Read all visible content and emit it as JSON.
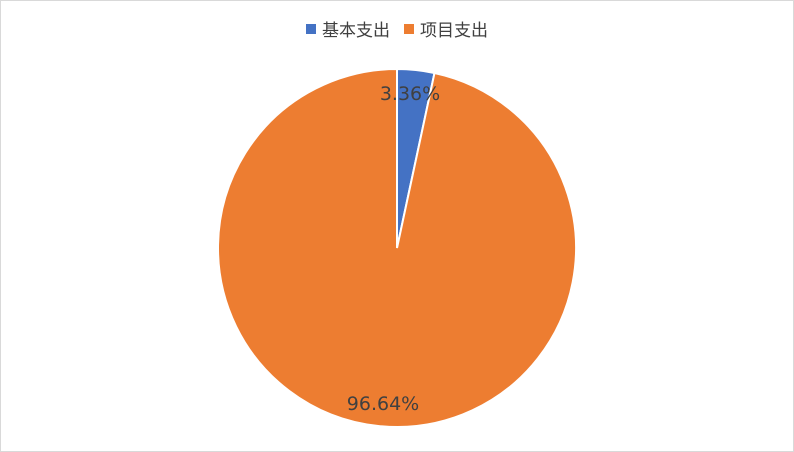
{
  "chart_data": {
    "type": "pie",
    "title": "",
    "legend_position": "top",
    "slices": [
      {
        "name": "基本支出",
        "value": 3.36,
        "label": "3.36%",
        "color": "#4472C4"
      },
      {
        "name": "项目支出",
        "value": 96.64,
        "label": "96.64%",
        "color": "#ED7D31"
      }
    ]
  }
}
